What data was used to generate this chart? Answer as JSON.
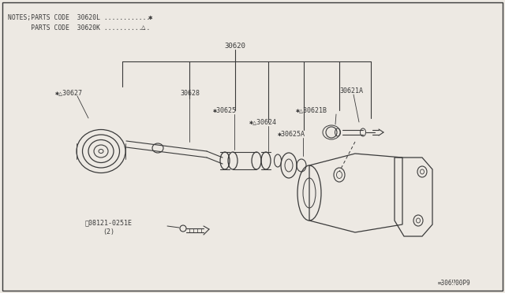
{
  "bg_color": "#ede9e3",
  "line_color": "#3a3a3a",
  "notes1": "NOTES;PARTS CODE  30620L ............",
  "notes2": "      PARTS CODE  30620K ............",
  "sym_star": "✱",
  "sym_tri": "△",
  "footer": "∞306⁉00P9",
  "lbl_30620": "30620",
  "lbl_30627": "✱△30627",
  "lbl_30628": "30628",
  "lbl_30625": "✱30625",
  "lbl_30624": "✱△30624",
  "lbl_30625A": "✱30625A",
  "lbl_30621A": "30621A",
  "lbl_30621B": "✱△30621B",
  "lbl_bolt": "Ⓑ08121-0251E",
  "lbl_bolt2": "(2)"
}
